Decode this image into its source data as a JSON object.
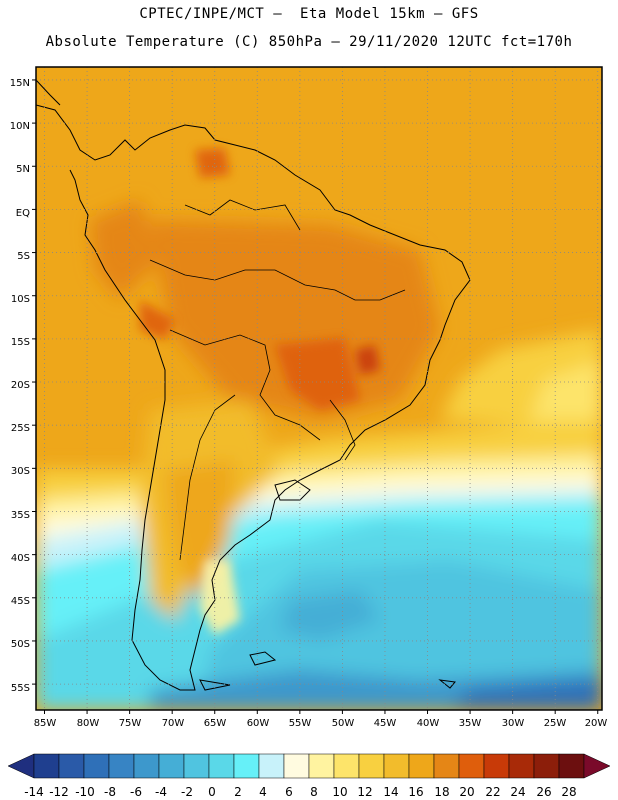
{
  "header": {
    "line1": "CPTEC/INPE/MCT –  Eta Model 15km – GFS",
    "line2": "Absolute Temperature (C) 850hPa – 29/11/2020 12UTC fct=170h"
  },
  "map": {
    "lat_labels": [
      "15N",
      "10N",
      "5N",
      "EQ",
      "5S",
      "10S",
      "15S",
      "20S",
      "25S",
      "30S",
      "35S",
      "40S",
      "45S",
      "50S",
      "55S"
    ],
    "lon_labels": [
      "85W",
      "80W",
      "75W",
      "70W",
      "65W",
      "60W",
      "55W",
      "50W",
      "45W",
      "40W",
      "35W",
      "30W",
      "25W",
      "20W"
    ],
    "lat_range": [
      16.5,
      -58
    ],
    "lon_range": [
      -86,
      -19.5
    ],
    "grid": "dotted"
  },
  "colorbar": {
    "labels": [
      "-14",
      "-12",
      "-10",
      "-8",
      "-6",
      "-4",
      "-2",
      "0",
      "2",
      "4",
      "6",
      "8",
      "10",
      "12",
      "14",
      "16",
      "18",
      "20",
      "22",
      "24",
      "26",
      "28"
    ],
    "colors": [
      "#1f3f8f",
      "#2a5aa8",
      "#2f70b8",
      "#3784c4",
      "#3d98cc",
      "#45aed6",
      "#50c4e0",
      "#5ad8e8",
      "#66f0f8",
      "#c8f2fa",
      "#fffbe0",
      "#fff3a0",
      "#fde46a",
      "#f8d040",
      "#f2bc2c",
      "#eea71a",
      "#e58616",
      "#df5e0c",
      "#c83a08",
      "#a82a08",
      "#8c1e0a",
      "#6c0f0f"
    ],
    "left_arrow_color": "#1f2f7f",
    "right_arrow_color": "#7a0a2a"
  }
}
